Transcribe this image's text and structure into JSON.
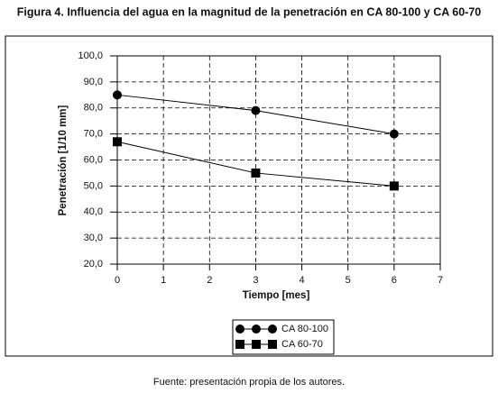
{
  "chart_data": {
    "type": "line",
    "title": "Figura 4. Influencia del agua en la magnitud de la penetración en CA 80-100 y CA 60-70",
    "source": "Fuente: presentación propia de los autores.",
    "x_label": "Tiempo [mes]",
    "y_label": "Penetración [1/10 mm]",
    "x": [
      0,
      3,
      6
    ],
    "series": [
      {
        "name": "CA 80-100",
        "color": "#000000",
        "marker": "circle",
        "values": [
          85,
          79,
          70
        ]
      },
      {
        "name": "CA 60-70",
        "color": "#000000",
        "marker": "square",
        "values": [
          67,
          55,
          50
        ]
      }
    ],
    "xlim": [
      0,
      7
    ],
    "xticks": [
      0,
      1,
      2,
      3,
      4,
      5,
      6,
      7
    ],
    "ylim": [
      20,
      100
    ],
    "yticks": [
      {
        "value": 20,
        "label": "20,0"
      },
      {
        "value": 30,
        "label": "30,0"
      },
      {
        "value": 40,
        "label": "40,0"
      },
      {
        "value": 50,
        "label": "50,0"
      },
      {
        "value": 60,
        "label": "60,0"
      },
      {
        "value": 70,
        "label": "70,0"
      },
      {
        "value": 80,
        "label": "80,0"
      },
      {
        "value": 90,
        "label": "90,0"
      },
      {
        "value": 100,
        "label": "100,0"
      }
    ],
    "grid": true,
    "legend": "bottom"
  }
}
